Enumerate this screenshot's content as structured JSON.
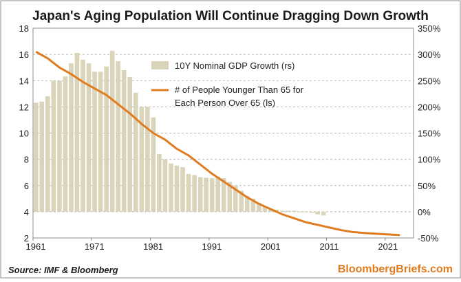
{
  "chart_data": {
    "type": "bar+line",
    "title": "Japan's Aging Population Will Continue Dragging Down Growth",
    "x_ticks": [
      "1961",
      "1971",
      "1981",
      "1991",
      "2001",
      "2011",
      "2021"
    ],
    "left_axis": {
      "ylim": [
        2,
        18
      ],
      "ticks": [
        "2",
        "4",
        "6",
        "8",
        "10",
        "12",
        "14",
        "16",
        "18"
      ]
    },
    "right_axis": {
      "ylim": [
        -50,
        350
      ],
      "ticks": [
        "-50%",
        "0%",
        "50%",
        "100%",
        "150%",
        "200%",
        "250%",
        "300%",
        "350%"
      ]
    },
    "grid": true,
    "series": [
      {
        "name": "10Y Nominal GDP Growth (rs)",
        "type": "bar",
        "axis": "right",
        "color": "#d9d4ba",
        "x": [
          1961,
          1962,
          1963,
          1964,
          1965,
          1966,
          1967,
          1968,
          1969,
          1970,
          1971,
          1972,
          1973,
          1974,
          1975,
          1976,
          1977,
          1978,
          1979,
          1980,
          1981,
          1982,
          1983,
          1984,
          1985,
          1986,
          1987,
          1988,
          1989,
          1990,
          1991,
          1992,
          1993,
          1994,
          1995,
          1996,
          1997,
          1998,
          1999,
          2000,
          2001,
          2002,
          2003,
          2004,
          2005,
          2006,
          2007,
          2008,
          2009,
          2010
        ],
        "values": [
          208,
          210,
          220,
          250,
          250,
          258,
          283,
          303,
          290,
          283,
          267,
          267,
          277,
          307,
          287,
          270,
          257,
          227,
          200,
          200,
          180,
          110,
          100,
          92,
          88,
          85,
          72,
          70,
          66,
          65,
          64,
          67,
          64,
          57,
          50,
          40,
          30,
          25,
          17,
          10,
          6,
          4,
          2,
          2,
          2,
          0,
          0,
          -2,
          -5,
          -7
        ]
      },
      {
        "name": "# of People Younger Than 65 for Each Person Over 65 (ls)",
        "type": "line",
        "axis": "left",
        "color": "#e07b20",
        "x": [
          1961,
          1963,
          1965,
          1967,
          1969,
          1971,
          1973,
          1975,
          1977,
          1979,
          1981,
          1983,
          1985,
          1987,
          1989,
          1991,
          1993,
          1995,
          1997,
          1999,
          2001,
          2003,
          2005,
          2007,
          2009,
          2011,
          2013,
          2015,
          2017,
          2019,
          2021,
          2023
        ],
        "values": [
          16.2,
          15.7,
          15,
          14.5,
          13.9,
          13.4,
          12.9,
          12.2,
          11.5,
          10.7,
          10,
          9.5,
          8.8,
          8.3,
          7.6,
          6.9,
          6.3,
          5.7,
          5.1,
          4.6,
          4.2,
          3.8,
          3.5,
          3.2,
          3,
          2.8,
          2.6,
          2.45,
          2.38,
          2.32,
          2.27,
          2.22
        ]
      }
    ],
    "legend_position": "upper-center"
  },
  "footer": {
    "source": "Source: IMF & Bloomberg",
    "brand": "BloombergBriefs.com"
  }
}
